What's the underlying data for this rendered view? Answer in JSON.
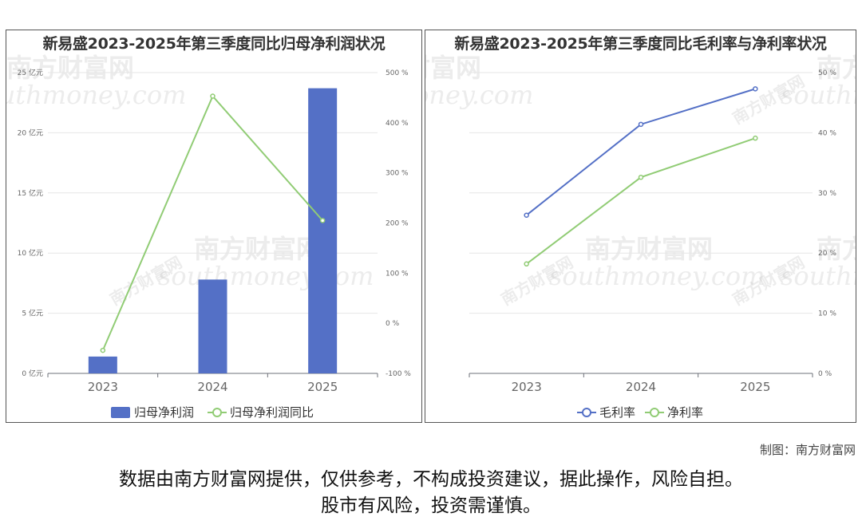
{
  "chart_data": [
    {
      "type": "bar",
      "title": "新易盛2023-2025年第三季度同比归母净利润状况",
      "categories": [
        "2023",
        "2024",
        "2025"
      ],
      "series": [
        {
          "name": "归母净利润",
          "type": "bar",
          "axis": "left",
          "values": [
            1.4,
            7.8,
            23.7
          ],
          "color": "#5470c6"
        },
        {
          "name": "归母净利润同比",
          "type": "line",
          "axis": "right",
          "values": [
            -54,
            453,
            205
          ],
          "color": "#91cc75"
        }
      ],
      "y_left": {
        "ticks": [
          "0 亿元",
          "5 亿元",
          "10 亿元",
          "15 亿元",
          "20 亿元",
          "25 亿元"
        ],
        "min": 0,
        "max": 25
      },
      "y_right": {
        "ticks": [
          "-100 %",
          "0 %",
          "100 %",
          "200 %",
          "300 %",
          "400 %",
          "500 %"
        ],
        "min": -100,
        "max": 500
      },
      "legend_position": "bottom-center",
      "grid": true
    },
    {
      "type": "line",
      "title": "新易盛2023-2025年第三季度同比毛利率与净利率状况",
      "categories": [
        "2023",
        "2024",
        "2025"
      ],
      "series": [
        {
          "name": "毛利率",
          "values": [
            26.3,
            41.4,
            47.3
          ],
          "color": "#5470c6"
        },
        {
          "name": "净利率",
          "values": [
            18.2,
            32.6,
            39.1
          ],
          "color": "#91cc75"
        }
      ],
      "y_right": {
        "ticks": [
          "0 %",
          "10 %",
          "20 %",
          "30 %",
          "40 %",
          "50 %"
        ],
        "min": 0,
        "max": 50
      },
      "legend_position": "bottom-center",
      "grid": true
    }
  ],
  "watermark": {
    "cn": "南方财富网",
    "en": "southmoney.com"
  },
  "credit": "制图：南方财富网",
  "disclaimer": {
    "line1": "数据由南方财富网提供，仅供参考，不构成投资建议，据此操作，风险自担。",
    "line2": "股市有风险，投资需谨慎。"
  }
}
